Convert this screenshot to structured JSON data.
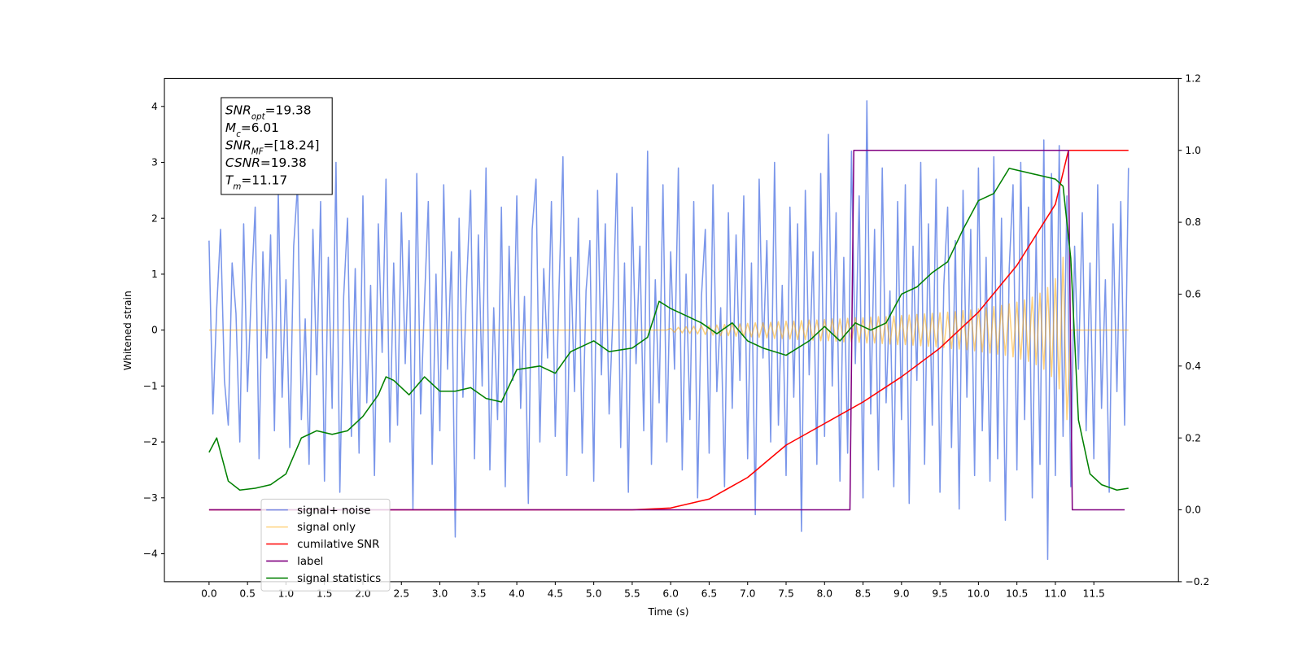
{
  "chart_data": {
    "type": "line",
    "xlabel": "Time (s)",
    "ylabel": "Whitened strain",
    "xlim": [
      -0.58,
      12.6
    ],
    "ylim": [
      -4.5,
      4.5
    ],
    "y2lim": [
      -0.2,
      1.2
    ],
    "xticks": [
      {
        "value": 0,
        "label": "0.0"
      },
      0.5,
      {
        "value": 1,
        "label": "1.0"
      },
      1.5,
      {
        "value": 2,
        "label": "2.0"
      },
      2.5,
      {
        "value": 3,
        "label": "3.0"
      },
      3.5,
      {
        "value": 4,
        "label": "4.0"
      },
      4.5,
      {
        "value": 5,
        "label": "5.0"
      },
      5.5,
      {
        "value": 6,
        "label": "6.0"
      },
      6.5,
      {
        "value": 7,
        "label": "7.0"
      },
      7.5,
      {
        "value": 8,
        "label": "8.0"
      },
      8.5,
      {
        "value": 9,
        "label": "9.0"
      },
      9.5,
      {
        "value": 10,
        "label": "10.0"
      },
      10.5,
      {
        "value": 11,
        "label": "11.0"
      },
      11.5
    ],
    "yticks": [
      {
        "value": -4,
        "label": "−4"
      },
      {
        "value": -3,
        "label": "−3"
      },
      {
        "value": -2,
        "label": "−2"
      },
      {
        "value": -1,
        "label": "−1"
      },
      0,
      1,
      2,
      3,
      4
    ],
    "y2ticks": [
      {
        "value": -0.2,
        "label": "−0.2"
      },
      {
        "value": 0,
        "label": "0.0"
      },
      0.2,
      0.4,
      0.6,
      0.8,
      {
        "value": 1,
        "label": "1.0"
      },
      1.2
    ],
    "legend": "lower left",
    "annotation": [
      {
        "base": "SNR",
        "sub": "opt",
        "text": "=19.38"
      },
      {
        "base": "M",
        "sub": "c",
        "text": "=6.01"
      },
      {
        "base": "SNR",
        "sub": "MF",
        "text": "=[18.24]"
      },
      {
        "base": "CSNR",
        "text": "=19.38"
      },
      {
        "base": "T",
        "sub": "m",
        "text": "=11.17"
      }
    ],
    "x": [
      0,
      0.05,
      0.1,
      0.15,
      0.2,
      0.25,
      0.3,
      0.35,
      0.4,
      0.45,
      0.5,
      0.55,
      0.6,
      0.65,
      0.7,
      0.75,
      0.8,
      0.85,
      0.9,
      0.95,
      1,
      1.05,
      1.1,
      1.15,
      1.2,
      1.25,
      1.3,
      1.35,
      1.4,
      1.45,
      1.5,
      1.55,
      1.6,
      1.65,
      1.7,
      1.75,
      1.8,
      1.85,
      1.9,
      1.95,
      2,
      2.05,
      2.1,
      2.15,
      2.2,
      2.25,
      2.3,
      2.35,
      2.4,
      2.45,
      2.5,
      2.55,
      2.6,
      2.65,
      2.7,
      2.75,
      2.8,
      2.85,
      2.9,
      2.95,
      3,
      3.05,
      3.1,
      3.15,
      3.2,
      3.25,
      3.3,
      3.35,
      3.4,
      3.45,
      3.5,
      3.55,
      3.6,
      3.65,
      3.7,
      3.75,
      3.8,
      3.85,
      3.9,
      3.95,
      4,
      4.05,
      4.1,
      4.15,
      4.2,
      4.25,
      4.3,
      4.35,
      4.4,
      4.45,
      4.5,
      4.55,
      4.6,
      4.65,
      4.7,
      4.75,
      4.8,
      4.85,
      4.9,
      4.95,
      5,
      5.05,
      5.1,
      5.15,
      5.2,
      5.25,
      5.3,
      5.35,
      5.4,
      5.45,
      5.5,
      5.55,
      5.6,
      5.65,
      5.7,
      5.75,
      5.8,
      5.85,
      5.9,
      5.95,
      6,
      6.05,
      6.1,
      6.15,
      6.2,
      6.25,
      6.3,
      6.35,
      6.4,
      6.45,
      6.5,
      6.55,
      6.6,
      6.65,
      6.7,
      6.75,
      6.8,
      6.85,
      6.9,
      6.95,
      7,
      7.05,
      7.1,
      7.15,
      7.2,
      7.25,
      7.3,
      7.35,
      7.4,
      7.45,
      7.5,
      7.55,
      7.6,
      7.65,
      7.7,
      7.75,
      7.8,
      7.85,
      7.9,
      7.95,
      8,
      8.05,
      8.1,
      8.15,
      8.2,
      8.25,
      8.3,
      8.35,
      8.4,
      8.45,
      8.5,
      8.55,
      8.6,
      8.65,
      8.7,
      8.75,
      8.8,
      8.85,
      8.9,
      8.95,
      9,
      9.05,
      9.1,
      9.15,
      9.2,
      9.25,
      9.3,
      9.35,
      9.4,
      9.45,
      9.5,
      9.55,
      9.6,
      9.65,
      9.7,
      9.75,
      9.8,
      9.85,
      9.9,
      9.95,
      10,
      10.05,
      10.1,
      10.15,
      10.2,
      10.25,
      10.3,
      10.35,
      10.4,
      10.45,
      10.5,
      10.55,
      10.6,
      10.65,
      10.7,
      10.75,
      10.8,
      10.85,
      10.9,
      10.95,
      11,
      11.05,
      11.1,
      11.15,
      11.2,
      11.25,
      11.3,
      11.35,
      11.4,
      11.45,
      11.5,
      11.55,
      11.6,
      11.65,
      11.7,
      11.75,
      11.8,
      11.85,
      11.9,
      11.95
    ],
    "series": [
      {
        "name": "signal+ noise",
        "color": "#4169e1",
        "alpha": 0.7,
        "values": [
          1.6,
          -1.5,
          0.4,
          1.8,
          -0.9,
          -1.7,
          1.2,
          0.3,
          -2.0,
          1.9,
          -1.1,
          0.7,
          2.2,
          -2.3,
          1.4,
          -0.5,
          1.7,
          -1.8,
          2.5,
          -1.2,
          0.9,
          -2.1,
          1.5,
          2.6,
          -1.6,
          0.2,
          -2.4,
          1.8,
          -0.8,
          2.3,
          -2.7,
          1.3,
          -1.4,
          3.0,
          -2.9,
          0.6,
          2.0,
          -1.9,
          1.1,
          -2.2,
          2.4,
          -1.3,
          0.8,
          -2.6,
          1.9,
          -0.4,
          2.7,
          -2.0,
          1.2,
          -1.7,
          2.1,
          -0.6,
          1.6,
          -3.2,
          2.8,
          -1.5,
          0.5,
          2.3,
          -2.4,
          1.0,
          -1.8,
          2.6,
          -0.7,
          1.4,
          -3.7,
          2.0,
          -1.2,
          0.9,
          2.5,
          -2.3,
          1.7,
          -1.0,
          2.9,
          -2.5,
          0.4,
          -1.6,
          2.2,
          -2.8,
          1.5,
          -0.9,
          2.4,
          -1.4,
          0.6,
          -3.1,
          1.8,
          2.7,
          -2.0,
          1.1,
          -0.5,
          2.3,
          -1.9,
          0.8,
          3.1,
          -2.6,
          1.3,
          -1.1,
          2.0,
          -2.2,
          0.7,
          1.6,
          -2.7,
          2.5,
          -0.8,
          1.9,
          -1.5,
          0.3,
          2.8,
          -2.1,
          1.2,
          -2.9,
          2.2,
          -0.6,
          1.5,
          -1.8,
          3.2,
          -2.4,
          0.9,
          -1.3,
          2.6,
          -2.0,
          1.4,
          -0.7,
          2.9,
          -2.5,
          1.0,
          -1.6,
          2.3,
          -3.0,
          0.6,
          1.8,
          -2.2,
          2.6,
          -1.1,
          0.4,
          -2.8,
          2.1,
          -1.4,
          1.7,
          -0.9,
          2.4,
          -2.3,
          1.2,
          -3.3,
          2.7,
          -0.5,
          1.6,
          -2.0,
          3.0,
          -1.7,
          0.8,
          -2.6,
          2.2,
          -1.2,
          1.9,
          -3.6,
          2.5,
          -0.8,
          1.4,
          -2.4,
          2.8,
          -1.9,
          3.5,
          -1.0,
          2.1,
          -2.7,
          1.3,
          -2.2,
          3.2,
          -0.6,
          2.4,
          -3.0,
          4.1,
          -1.5,
          1.8,
          -2.5,
          2.9,
          -1.3,
          0.7,
          -2.8,
          2.3,
          -1.6,
          2.6,
          -3.1,
          1.5,
          -0.9,
          3.0,
          -2.4,
          1.9,
          -1.7,
          2.7,
          -2.9,
          0.8,
          2.2,
          -2.1,
          1.6,
          -3.2,
          2.5,
          -1.2,
          1.8,
          -2.6,
          2.9,
          -1.8,
          1.3,
          -2.7,
          3.1,
          -2.3,
          2.0,
          -3.4,
          1.1,
          2.6,
          -2.5,
          3.0,
          -1.6,
          2.2,
          -3.0,
          1.7,
          -2.4,
          3.4,
          -4.1,
          2.8,
          -2.6,
          3.3,
          -1.9,
          2.4,
          -2.8,
          1.5,
          -0.7,
          2.1,
          -1.8,
          1.2,
          -2.3,
          2.6,
          -1.4,
          0.9,
          -2.9,
          1.9,
          -1.1,
          2.3,
          -1.7,
          2.9
        ]
      },
      {
        "name": "signal only",
        "color": "#ffa500",
        "alpha": 0.5,
        "values": [
          0,
          0,
          0,
          0,
          0,
          0,
          0,
          0,
          0,
          0,
          0,
          0,
          0,
          0,
          0,
          0,
          0,
          0,
          0,
          0,
          0,
          0,
          0,
          0,
          0,
          0,
          0,
          0,
          0,
          0,
          0,
          0,
          0,
          0,
          0,
          0,
          0,
          0,
          0,
          0,
          0,
          0,
          0,
          0,
          0,
          0,
          0,
          0,
          0,
          0,
          0,
          0,
          0,
          0,
          0,
          0,
          0,
          0,
          0,
          0,
          0,
          0,
          0,
          0,
          0,
          0,
          0,
          0,
          0,
          0,
          0,
          0,
          0,
          0,
          0,
          0,
          0,
          0,
          0,
          0,
          0,
          0,
          0,
          0,
          0,
          0,
          0,
          0,
          0,
          0,
          0,
          0,
          0,
          0,
          0,
          0,
          0,
          0,
          0,
          0,
          0,
          0,
          0,
          0,
          0,
          0,
          0,
          0,
          0,
          0,
          0,
          0,
          0,
          0,
          0,
          0,
          0,
          0,
          0,
          0,
          0.03,
          -0.04,
          0.05,
          -0.05,
          0.06,
          -0.06,
          0.07,
          -0.07,
          0.08,
          -0.08,
          0.08,
          -0.09,
          0.09,
          -0.1,
          0.1,
          -0.1,
          0.11,
          -0.11,
          0.11,
          -0.12,
          0.12,
          -0.12,
          0.13,
          -0.13,
          0.13,
          -0.14,
          0.14,
          -0.15,
          0.15,
          -0.15,
          0.16,
          -0.16,
          0.16,
          -0.17,
          0.17,
          -0.17,
          0.18,
          -0.18,
          0.18,
          -0.19,
          0.19,
          -0.19,
          0.2,
          -0.2,
          0.2,
          -0.21,
          0.21,
          -0.21,
          0.22,
          -0.22,
          0.22,
          -0.23,
          0.23,
          -0.23,
          0.24,
          -0.24,
          0.24,
          -0.25,
          0.25,
          -0.26,
          0.26,
          -0.26,
          0.27,
          -0.27,
          0.28,
          -0.28,
          0.29,
          -0.29,
          0.3,
          -0.3,
          0.31,
          -0.31,
          0.32,
          -0.33,
          0.33,
          -0.34,
          0.35,
          -0.35,
          0.36,
          -0.37,
          0.38,
          -0.39,
          0.4,
          -0.41,
          0.42,
          -0.43,
          0.44,
          -0.45,
          0.47,
          -0.48,
          0.5,
          -0.52,
          0.54,
          -0.56,
          0.59,
          -0.62,
          0.66,
          -0.7,
          0.76,
          -0.83,
          0.92,
          -1.05,
          1.3,
          -1.6,
          0,
          0,
          0,
          0,
          0,
          0,
          0,
          0,
          0,
          0,
          0,
          0,
          0,
          0,
          0,
          0
        ]
      },
      {
        "name": "cumilative SNR",
        "color": "#ff0000",
        "axis": "y2",
        "x": [
          0,
          5.5,
          6,
          6.5,
          7,
          7.5,
          8,
          8.5,
          9,
          9.5,
          10,
          10.5,
          11,
          11.17,
          11.2,
          11.95
        ],
        "values": [
          0,
          0,
          0.005,
          0.03,
          0.09,
          0.18,
          0.24,
          0.3,
          0.37,
          0.45,
          0.55,
          0.68,
          0.85,
          1,
          1,
          1
        ]
      },
      {
        "name": "label",
        "color": "#800080",
        "axis": "y2",
        "x": [
          0,
          8.33,
          8.38,
          11.17,
          11.22,
          11.9
        ],
        "values": [
          0,
          0,
          1,
          1,
          0,
          0
        ]
      },
      {
        "name": "signal statistics",
        "color": "#008000",
        "axis": "y2",
        "x": [
          0,
          0.1,
          0.25,
          0.4,
          0.6,
          0.8,
          1.0,
          1.2,
          1.4,
          1.6,
          1.8,
          2.0,
          2.2,
          2.3,
          2.4,
          2.6,
          2.8,
          3.0,
          3.2,
          3.4,
          3.6,
          3.8,
          4.0,
          4.3,
          4.5,
          4.7,
          5.0,
          5.2,
          5.5,
          5.7,
          5.85,
          6.0,
          6.2,
          6.4,
          6.6,
          6.8,
          7.0,
          7.2,
          7.5,
          7.8,
          8.0,
          8.2,
          8.4,
          8.6,
          8.8,
          9.0,
          9.2,
          9.4,
          9.6,
          9.8,
          10.0,
          10.2,
          10.4,
          10.6,
          10.8,
          11.0,
          11.1,
          11.2,
          11.3,
          11.45,
          11.6,
          11.8,
          11.95
        ],
        "values": [
          0.16,
          0.2,
          0.08,
          0.055,
          0.06,
          0.07,
          0.1,
          0.2,
          0.22,
          0.21,
          0.22,
          0.26,
          0.32,
          0.37,
          0.36,
          0.32,
          0.37,
          0.33,
          0.33,
          0.34,
          0.31,
          0.3,
          0.39,
          0.4,
          0.38,
          0.44,
          0.47,
          0.44,
          0.45,
          0.48,
          0.58,
          0.56,
          0.54,
          0.52,
          0.49,
          0.52,
          0.47,
          0.45,
          0.43,
          0.47,
          0.51,
          0.47,
          0.52,
          0.5,
          0.52,
          0.6,
          0.62,
          0.66,
          0.69,
          0.78,
          0.86,
          0.88,
          0.95,
          0.94,
          0.93,
          0.92,
          0.9,
          0.7,
          0.25,
          0.1,
          0.07,
          0.055,
          0.06
        ]
      }
    ]
  }
}
